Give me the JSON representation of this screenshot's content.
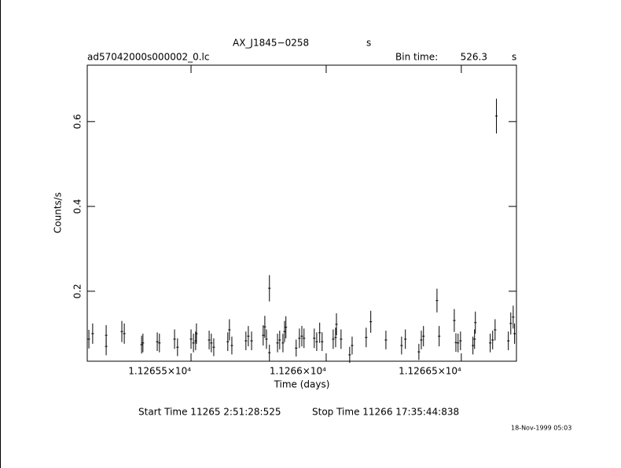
{
  "chart_data": {
    "type": "errorbar",
    "title": "AX_J1845−0258",
    "title_unit": "s",
    "file_name": "ad57042000s000002_0.lc",
    "bin_time_label": "Bin time:",
    "bin_time": 526.3,
    "bin_time_unit": "s",
    "xlabel": "Time (days)",
    "ylabel": "Counts/s",
    "start_time": "Start Time 11265  2:51:28:525",
    "stop_time": "Stop Time 11266 17:35:44:838",
    "date_stamp": "18-Nov-1999 05:03",
    "color": "#000000",
    "xlim": [
      11265.116,
      11266.704
    ],
    "ylim": [
      0.035,
      0.733
    ],
    "xticks": [
      {
        "value": 11265.5,
        "label": "1.12655×10⁴"
      },
      {
        "value": 11266,
        "label": "1.1266×10⁴"
      },
      {
        "value": 11266.5,
        "label": "1.12665×10⁴"
      }
    ],
    "yticks": [
      0.2,
      0.4,
      0.6
    ],
    "x": [
      11265.122,
      11265.136,
      11265.186,
      11265.186,
      11265.244,
      11265.253,
      11265.317,
      11265.322,
      11265.375,
      11265.383,
      11265.439,
      11265.45,
      11265.5,
      11265.509,
      11265.517,
      11265.52,
      11265.567,
      11265.575,
      11265.584,
      11265.636,
      11265.642,
      11265.651,
      11265.703,
      11265.712,
      11265.724,
      11265.767,
      11265.773,
      11265.779,
      11265.79,
      11265.79,
      11265.82,
      11265.828,
      11265.84,
      11265.846,
      11265.851,
      11265.889,
      11265.901,
      11265.91,
      11265.918,
      11265.956,
      11265.965,
      11265.976,
      11265.985,
      11266.026,
      11266.035,
      11266.038,
      11266.055,
      11266.087,
      11266.096,
      11266.148,
      11266.165,
      11266.221,
      11266.279,
      11266.293,
      11266.343,
      11266.352,
      11266.36,
      11266.41,
      11266.418,
      11266.474,
      11266.48,
      11266.488,
      11266.497,
      11266.543,
      11266.549,
      11266.552,
      11266.607,
      11266.616,
      11266.625,
      11266.63,
      11266.674,
      11266.683,
      11266.692,
      11266.697
    ],
    "values": [
      0.087,
      0.1,
      0.096,
      0.07,
      0.105,
      0.1,
      0.074,
      0.078,
      0.081,
      0.078,
      0.087,
      0.068,
      0.087,
      0.078,
      0.083,
      0.1,
      0.085,
      0.078,
      0.068,
      0.081,
      0.109,
      0.072,
      0.083,
      0.094,
      0.083,
      0.096,
      0.116,
      0.087,
      0.055,
      0.207,
      0.078,
      0.085,
      0.078,
      0.105,
      0.115,
      0.066,
      0.089,
      0.094,
      0.089,
      0.089,
      0.081,
      0.102,
      0.081,
      0.087,
      0.091,
      0.122,
      0.087,
      0.05,
      0.072,
      0.091,
      0.128,
      0.085,
      0.072,
      0.087,
      0.057,
      0.085,
      0.094,
      0.178,
      0.094,
      0.131,
      0.079,
      0.078,
      0.083,
      0.072,
      0.087,
      0.126,
      0.078,
      0.085,
      0.109,
      0.613,
      0.083,
      0.124,
      0.139,
      0.1
    ],
    "errors": [
      0.022,
      0.024,
      0.024,
      0.021,
      0.025,
      0.024,
      0.021,
      0.022,
      0.022,
      0.022,
      0.023,
      0.021,
      0.023,
      0.022,
      0.022,
      0.024,
      0.022,
      0.022,
      0.021,
      0.022,
      0.025,
      0.021,
      0.022,
      0.024,
      0.022,
      0.024,
      0.026,
      0.023,
      0.019,
      0.031,
      0.022,
      0.022,
      0.022,
      0.025,
      0.026,
      0.02,
      0.023,
      0.024,
      0.023,
      0.023,
      0.022,
      0.024,
      0.022,
      0.023,
      0.023,
      0.026,
      0.023,
      0.019,
      0.021,
      0.023,
      0.026,
      0.022,
      0.021,
      0.023,
      0.019,
      0.022,
      0.024,
      0.028,
      0.024,
      0.027,
      0.022,
      0.022,
      0.022,
      0.021,
      0.023,
      0.026,
      0.022,
      0.022,
      0.025,
      0.041,
      0.022,
      0.026,
      0.027,
      0.024
    ]
  }
}
